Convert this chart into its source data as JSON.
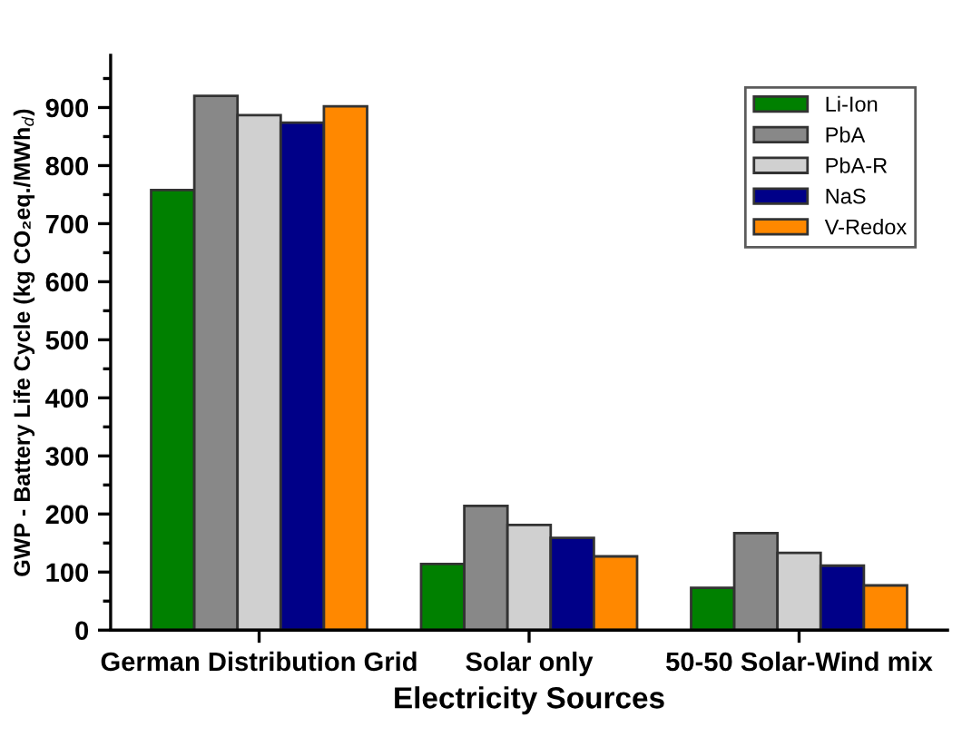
{
  "chart_data": {
    "type": "bar",
    "xlabel": "Electricity Sources",
    "ylabel": "GWP - Battery Life Cycle (kg CO₂eq./MWh$_{d}$)",
    "categories": [
      "German Distribution Grid",
      "Solar only",
      "50-50 Solar-Wind mix"
    ],
    "series": [
      {
        "name": "Li-Ion",
        "color": "#008000",
        "values": [
          758,
          114,
          73
        ]
      },
      {
        "name": "PbA",
        "color": "#888888",
        "values": [
          920,
          214,
          167
        ]
      },
      {
        "name": "PbA-R",
        "color": "#d0d0d0",
        "values": [
          887,
          181,
          133
        ]
      },
      {
        "name": "NaS",
        "color": "#000088",
        "values": [
          874,
          159,
          111
        ]
      },
      {
        "name": "V-Redox",
        "color": "#ff8800",
        "values": [
          902,
          127,
          77
        ]
      }
    ],
    "ylim": [
      0,
      990
    ],
    "yticks": [
      0,
      100,
      200,
      300,
      400,
      500,
      600,
      700,
      800,
      900
    ],
    "grid": false,
    "legend": "top right"
  }
}
